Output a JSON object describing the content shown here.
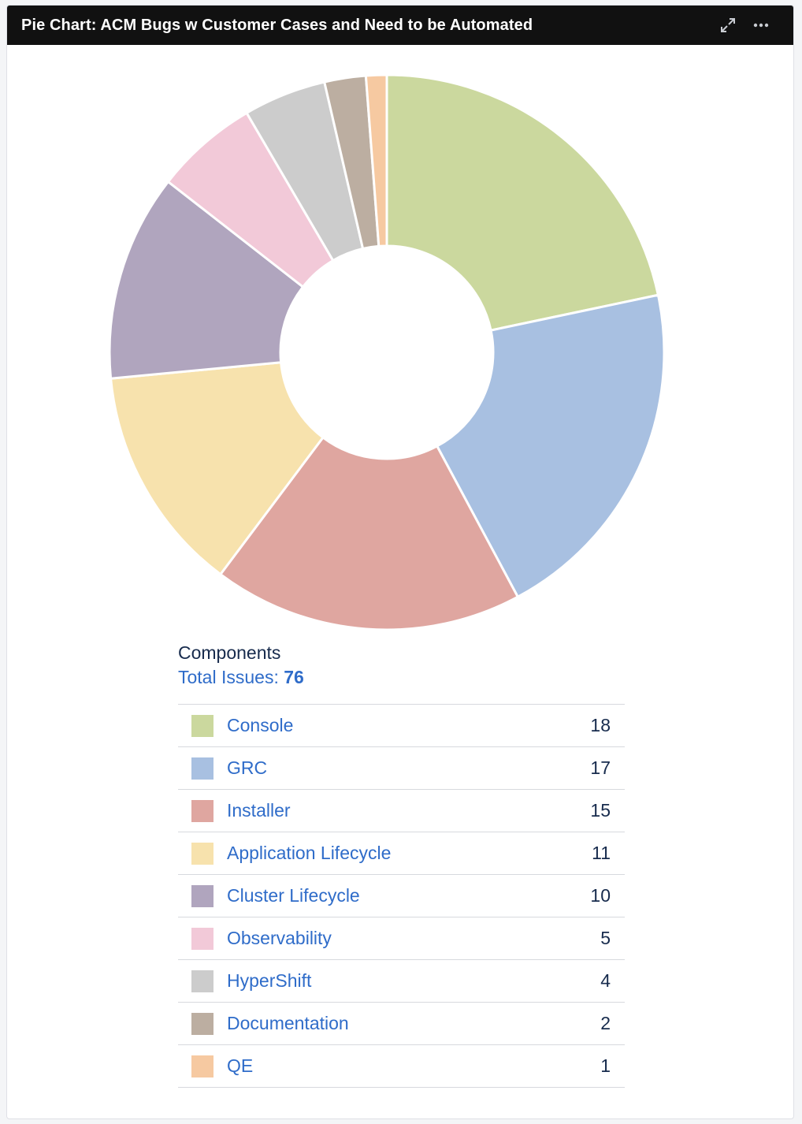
{
  "header": {
    "title": "Pie Chart: ACM Bugs w Customer Cases and Need to be Automated",
    "expand_icon": "expand-arrows-icon",
    "more_icon": "more-ellipsis-icon"
  },
  "legend": {
    "heading": "Components",
    "total_label": "Total Issues: ",
    "total_value": "76"
  },
  "chart_data": {
    "type": "pie",
    "title": "Pie Chart: ACM Bugs w Customer Cases and Need to be Automated",
    "categories": [
      "Console",
      "GRC",
      "Installer",
      "Application Lifecycle",
      "Cluster Lifecycle",
      "Observability",
      "HyperShift",
      "Documentation",
      "QE"
    ],
    "values": [
      18,
      17,
      15,
      11,
      10,
      5,
      4,
      2,
      1
    ],
    "counts": [
      "18",
      "17",
      "15",
      "11",
      "10",
      "5",
      "4",
      "2",
      "1"
    ],
    "colors": [
      "#cbd89e",
      "#a8c0e1",
      "#dfa6a0",
      "#f7e2ad",
      "#b0a5be",
      "#f2c9d8",
      "#cccccc",
      "#bcaea1",
      "#f6c9a1"
    ],
    "donut": true,
    "legend_placement": "bottom"
  }
}
